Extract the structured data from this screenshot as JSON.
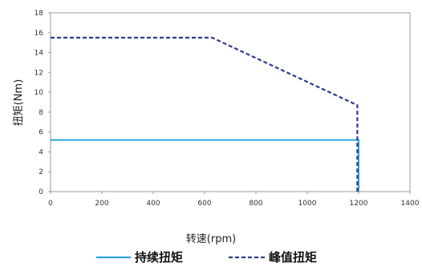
{
  "chart_data": {
    "type": "line",
    "title": "",
    "xlabel": "转速(rpm)",
    "ylabel": "扭矩(Nm)",
    "xlim": [
      0,
      1400
    ],
    "ylim": [
      0,
      18
    ],
    "x_ticks": [
      0,
      200,
      400,
      600,
      800,
      1000,
      1200,
      1400
    ],
    "y_ticks": [
      0,
      2,
      4,
      6,
      8,
      10,
      12,
      14,
      16,
      18
    ],
    "grid": false,
    "legend_position": "bottom",
    "series": [
      {
        "name": "持续扭矩",
        "style": "solid",
        "color": "#29a3dc",
        "points": [
          [
            0,
            5.2
          ],
          [
            1200,
            5.2
          ],
          [
            1200,
            0
          ]
        ]
      },
      {
        "name": "峰值扭矩",
        "style": "dashed",
        "color": "#2e3a8c",
        "points": [
          [
            0,
            15.5
          ],
          [
            630,
            15.5
          ],
          [
            1195,
            8.7
          ],
          [
            1195,
            0
          ]
        ]
      }
    ]
  }
}
